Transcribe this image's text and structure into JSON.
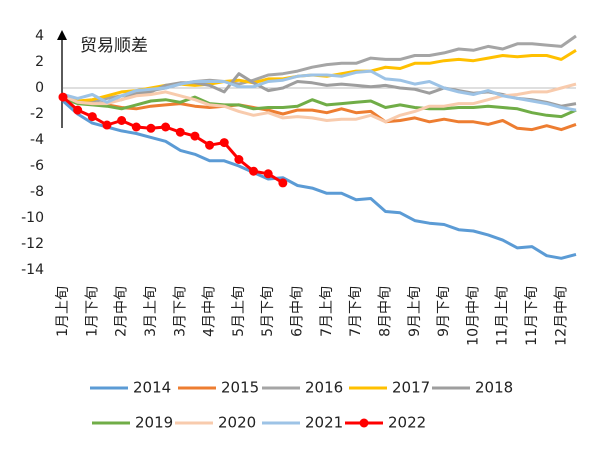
{
  "chart_data": {
    "type": "line",
    "title": "贸易顺差",
    "categories": [
      "1月上旬",
      null,
      "1月下旬",
      null,
      "2月中旬",
      null,
      "3月上旬",
      null,
      "3月下旬",
      null,
      "4月中旬",
      null,
      "5月上旬",
      null,
      "5月下旬",
      null,
      "6月中旬",
      null,
      "7月上旬",
      null,
      "7月下旬",
      null,
      "8月中旬",
      null,
      "9月上旬",
      null,
      "9月下旬",
      null,
      "10月中旬",
      null,
      "11月上旬",
      null,
      "11月下旬",
      null,
      "12月中旬",
      null
    ],
    "ylim": [
      -14,
      4
    ],
    "yticks": [
      -14,
      -12,
      -10,
      -8,
      -6,
      -4,
      -2,
      0,
      2,
      4
    ],
    "grid": false,
    "series": [
      {
        "name": "2014",
        "color": "#5b9bd5",
        "values": [
          -1.0,
          -2.0,
          -2.7,
          -3.0,
          -3.3,
          -3.5,
          -3.8,
          -4.1,
          -4.8,
          -5.1,
          -5.6,
          -5.6,
          -6.0,
          -6.5,
          -7.0,
          -6.9,
          -7.5,
          -7.7,
          -8.1,
          -8.1,
          -8.6,
          -8.5,
          -9.5,
          -9.6,
          -10.2,
          -10.4,
          -10.5,
          -10.9,
          -11.0,
          -11.3,
          -11.7,
          -12.3,
          -12.2,
          -12.9,
          -13.1,
          -12.8
        ]
      },
      {
        "name": "2015",
        "color": "#ed7d31",
        "values": [
          -0.8,
          -1.0,
          -1.2,
          -1.3,
          -1.5,
          -1.6,
          -1.4,
          -1.3,
          -1.2,
          -1.4,
          -1.5,
          -1.4,
          -1.3,
          -1.5,
          -1.7,
          -2.0,
          -1.7,
          -1.7,
          -1.9,
          -1.6,
          -1.9,
          -1.8,
          -2.6,
          -2.5,
          -2.3,
          -2.6,
          -2.4,
          -2.6,
          -2.6,
          -2.8,
          -2.5,
          -3.1,
          -3.2,
          -2.9,
          -3.2,
          -2.8
        ]
      },
      {
        "name": "2016",
        "color": "#a5a5a5",
        "values": [
          -0.9,
          -1.0,
          -1.0,
          -0.8,
          -0.6,
          -0.4,
          -0.2,
          0.0,
          0.3,
          0.5,
          0.6,
          0.5,
          0.3,
          0.6,
          1.0,
          1.1,
          1.3,
          1.6,
          1.8,
          1.9,
          1.9,
          2.3,
          2.2,
          2.2,
          2.5,
          2.5,
          2.7,
          3.0,
          2.9,
          3.2,
          3.0,
          3.4,
          3.4,
          3.3,
          3.2,
          4.0
        ]
      },
      {
        "name": "2017",
        "color": "#ffc000",
        "values": [
          -0.7,
          -1.0,
          -0.9,
          -0.6,
          -0.3,
          -0.2,
          0.0,
          0.2,
          0.3,
          0.2,
          0.3,
          0.5,
          0.6,
          0.4,
          0.7,
          0.7,
          0.9,
          1.0,
          0.9,
          1.1,
          1.3,
          1.3,
          1.6,
          1.5,
          1.9,
          1.9,
          2.1,
          2.2,
          2.1,
          2.3,
          2.5,
          2.4,
          2.5,
          2.5,
          2.2,
          2.9
        ]
      },
      {
        "name": "2018",
        "color": "#9e9e9e",
        "values": [
          -0.8,
          -1.1,
          -1.2,
          -1.1,
          -0.9,
          -0.5,
          -0.3,
          0.2,
          0.4,
          0.4,
          0.2,
          -0.3,
          1.1,
          0.4,
          -0.2,
          0.0,
          0.5,
          0.4,
          0.2,
          0.3,
          0.2,
          0.1,
          0.2,
          0.0,
          -0.1,
          -0.4,
          0.0,
          -0.2,
          -0.4,
          -0.3,
          -0.5,
          -0.8,
          -0.9,
          -1.1,
          -1.4,
          -1.2
        ]
      },
      {
        "name": "2019",
        "color": "#70ad47",
        "values": [
          -0.8,
          -1.2,
          -1.3,
          -1.4,
          -1.6,
          -1.3,
          -1.0,
          -0.9,
          -1.1,
          -0.7,
          -1.2,
          -1.3,
          -1.3,
          -1.6,
          -1.5,
          -1.5,
          -1.4,
          -0.9,
          -1.3,
          -1.2,
          -1.1,
          -1.0,
          -1.5,
          -1.3,
          -1.5,
          -1.6,
          -1.6,
          -1.5,
          -1.5,
          -1.4,
          -1.5,
          -1.6,
          -1.9,
          -2.1,
          -2.2,
          -1.7
        ]
      },
      {
        "name": "2020",
        "color": "#f8cbad",
        "values": [
          -0.6,
          -1.1,
          -1.2,
          -1.2,
          -0.9,
          -0.6,
          -0.5,
          -0.3,
          -0.6,
          -0.9,
          -1.3,
          -1.4,
          -1.8,
          -2.1,
          -1.9,
          -2.3,
          -2.2,
          -2.3,
          -2.5,
          -2.4,
          -2.4,
          -2.1,
          -2.6,
          -2.1,
          -1.8,
          -1.4,
          -1.4,
          -1.2,
          -1.2,
          -0.9,
          -0.6,
          -0.5,
          -0.3,
          -0.3,
          0.0,
          0.3
        ]
      },
      {
        "name": "2021",
        "color": "#9dc3e6",
        "values": [
          -0.5,
          -0.8,
          -0.5,
          -1.1,
          -0.6,
          -0.2,
          -0.1,
          0.0,
          0.3,
          0.5,
          0.5,
          0.5,
          0.1,
          0.1,
          0.5,
          0.6,
          0.9,
          1.0,
          1.0,
          0.9,
          1.2,
          1.3,
          0.7,
          0.6,
          0.3,
          0.5,
          0.0,
          -0.3,
          -0.5,
          -0.2,
          -0.6,
          -0.8,
          -1.0,
          -1.2,
          -1.5,
          -1.7
        ]
      },
      {
        "name": "2022",
        "color": "#ff0000",
        "markers": true,
        "values": [
          -0.7,
          -1.7,
          -2.2,
          -2.85,
          -2.5,
          -3.0,
          -3.1,
          -3.0,
          -3.4,
          -3.7,
          -4.4,
          -4.2,
          -5.5,
          -6.4,
          -6.6,
          -7.3,
          null,
          null,
          null,
          null,
          null,
          null,
          null,
          null,
          null,
          null,
          null,
          null,
          null,
          null,
          null,
          null,
          null,
          null,
          null,
          null
        ]
      }
    ]
  }
}
